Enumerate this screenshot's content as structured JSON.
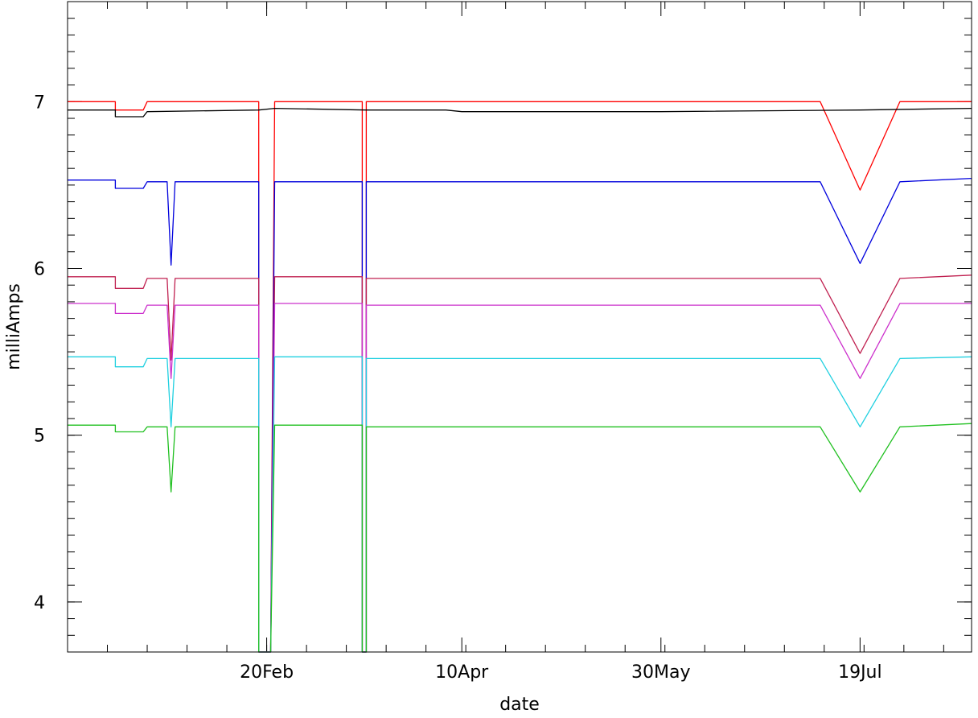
{
  "chart_data": {
    "type": "line",
    "title": "",
    "xlabel": "date",
    "ylabel": "milliAmps",
    "ylim": [
      3.7,
      7.6
    ],
    "x_start": "2007-01-01",
    "x_end": "2007-08-16",
    "x_ticks": [
      {
        "date": "2007-02-20",
        "label": "20Feb"
      },
      {
        "date": "2007-04-10",
        "label": "10Apr"
      },
      {
        "date": "2007-05-30",
        "label": "30May"
      },
      {
        "date": "2007-07-19",
        "label": "19Jul"
      }
    ],
    "y_ticks": [
      {
        "value": 4,
        "label": "4"
      },
      {
        "value": 5,
        "label": "5"
      },
      {
        "value": 6,
        "label": "6"
      },
      {
        "value": 7,
        "label": "7"
      }
    ],
    "series": [
      {
        "color": "#ff0000",
        "points": [
          [
            "2007-01-01",
            7.0
          ],
          [
            "2007-01-13",
            7.0
          ],
          [
            "2007-01-13",
            6.95
          ],
          [
            "2007-01-20",
            6.95
          ],
          [
            "2007-01-21",
            7.0
          ],
          [
            "2007-02-18",
            7.0
          ],
          [
            "2007-02-18",
            3.7
          ],
          [
            "2007-02-21",
            3.7
          ],
          [
            "2007-02-22",
            7.0
          ],
          [
            "2007-03-16",
            7.0
          ],
          [
            "2007-03-16",
            3.7
          ],
          [
            "2007-03-17",
            3.7
          ],
          [
            "2007-03-17",
            7.0
          ],
          [
            "2007-07-09",
            7.0
          ],
          [
            "2007-07-19",
            6.47
          ],
          [
            "2007-07-29",
            7.0
          ],
          [
            "2007-08-16",
            7.0
          ]
        ]
      },
      {
        "color": "#000000",
        "points": [
          [
            "2007-01-01",
            6.95
          ],
          [
            "2007-01-13",
            6.95
          ],
          [
            "2007-01-13",
            6.91
          ],
          [
            "2007-01-20",
            6.91
          ],
          [
            "2007-01-21",
            6.94
          ],
          [
            "2007-02-18",
            6.95
          ],
          [
            "2007-02-22",
            6.96
          ],
          [
            "2007-03-17",
            6.95
          ],
          [
            "2007-04-06",
            6.95
          ],
          [
            "2007-04-10",
            6.94
          ],
          [
            "2007-05-30",
            6.94
          ],
          [
            "2007-07-19",
            6.95
          ],
          [
            "2007-08-16",
            6.96
          ]
        ]
      },
      {
        "color": "#0000dd",
        "points": [
          [
            "2007-01-01",
            6.53
          ],
          [
            "2007-01-13",
            6.53
          ],
          [
            "2007-01-13",
            6.48
          ],
          [
            "2007-01-20",
            6.48
          ],
          [
            "2007-01-21",
            6.52
          ],
          [
            "2007-01-26",
            6.52
          ],
          [
            "2007-01-27",
            6.02
          ],
          [
            "2007-01-28",
            6.52
          ],
          [
            "2007-02-18",
            6.52
          ],
          [
            "2007-02-18",
            3.7
          ],
          [
            "2007-02-21",
            3.7
          ],
          [
            "2007-02-22",
            6.52
          ],
          [
            "2007-03-16",
            6.52
          ],
          [
            "2007-03-16",
            3.7
          ],
          [
            "2007-03-17",
            3.7
          ],
          [
            "2007-03-17",
            6.52
          ],
          [
            "2007-07-09",
            6.52
          ],
          [
            "2007-07-19",
            6.03
          ],
          [
            "2007-07-29",
            6.52
          ],
          [
            "2007-08-16",
            6.54
          ]
        ]
      },
      {
        "color": "#c02050",
        "points": [
          [
            "2007-01-01",
            5.95
          ],
          [
            "2007-01-13",
            5.95
          ],
          [
            "2007-01-13",
            5.88
          ],
          [
            "2007-01-20",
            5.88
          ],
          [
            "2007-01-21",
            5.94
          ],
          [
            "2007-01-26",
            5.94
          ],
          [
            "2007-01-27",
            5.45
          ],
          [
            "2007-01-28",
            5.94
          ],
          [
            "2007-02-18",
            5.94
          ],
          [
            "2007-02-18",
            3.7
          ],
          [
            "2007-02-21",
            3.7
          ],
          [
            "2007-02-22",
            5.95
          ],
          [
            "2007-03-16",
            5.95
          ],
          [
            "2007-03-16",
            3.7
          ],
          [
            "2007-03-17",
            3.7
          ],
          [
            "2007-03-17",
            5.94
          ],
          [
            "2007-07-09",
            5.94
          ],
          [
            "2007-07-19",
            5.49
          ],
          [
            "2007-07-29",
            5.94
          ],
          [
            "2007-08-16",
            5.96
          ]
        ]
      },
      {
        "color": "#cc30cc",
        "points": [
          [
            "2007-01-01",
            5.79
          ],
          [
            "2007-01-13",
            5.79
          ],
          [
            "2007-01-13",
            5.73
          ],
          [
            "2007-01-20",
            5.73
          ],
          [
            "2007-01-21",
            5.78
          ],
          [
            "2007-01-26",
            5.78
          ],
          [
            "2007-01-27",
            5.34
          ],
          [
            "2007-01-28",
            5.78
          ],
          [
            "2007-02-18",
            5.78
          ],
          [
            "2007-02-18",
            3.7
          ],
          [
            "2007-02-21",
            3.7
          ],
          [
            "2007-02-22",
            5.79
          ],
          [
            "2007-03-16",
            5.79
          ],
          [
            "2007-03-16",
            3.7
          ],
          [
            "2007-03-17",
            3.7
          ],
          [
            "2007-03-17",
            5.78
          ],
          [
            "2007-07-09",
            5.78
          ],
          [
            "2007-07-19",
            5.34
          ],
          [
            "2007-07-29",
            5.79
          ],
          [
            "2007-08-16",
            5.79
          ]
        ]
      },
      {
        "color": "#20d0e0",
        "points": [
          [
            "2007-01-01",
            5.47
          ],
          [
            "2007-01-13",
            5.47
          ],
          [
            "2007-01-13",
            5.41
          ],
          [
            "2007-01-20",
            5.41
          ],
          [
            "2007-01-21",
            5.46
          ],
          [
            "2007-01-26",
            5.46
          ],
          [
            "2007-01-27",
            5.05
          ],
          [
            "2007-01-28",
            5.46
          ],
          [
            "2007-02-18",
            5.46
          ],
          [
            "2007-02-18",
            3.7
          ],
          [
            "2007-02-21",
            3.7
          ],
          [
            "2007-02-22",
            5.47
          ],
          [
            "2007-03-16",
            5.47
          ],
          [
            "2007-03-16",
            3.7
          ],
          [
            "2007-03-17",
            3.7
          ],
          [
            "2007-03-17",
            5.46
          ],
          [
            "2007-07-09",
            5.46
          ],
          [
            "2007-07-19",
            5.05
          ],
          [
            "2007-07-29",
            5.46
          ],
          [
            "2007-08-16",
            5.47
          ]
        ]
      },
      {
        "color": "#20c020",
        "points": [
          [
            "2007-01-01",
            5.06
          ],
          [
            "2007-01-13",
            5.06
          ],
          [
            "2007-01-13",
            5.02
          ],
          [
            "2007-01-20",
            5.02
          ],
          [
            "2007-01-21",
            5.05
          ],
          [
            "2007-01-26",
            5.05
          ],
          [
            "2007-01-27",
            4.66
          ],
          [
            "2007-01-28",
            5.05
          ],
          [
            "2007-02-18",
            5.05
          ],
          [
            "2007-02-18",
            3.7
          ],
          [
            "2007-02-21",
            3.7
          ],
          [
            "2007-02-22",
            5.06
          ],
          [
            "2007-03-16",
            5.06
          ],
          [
            "2007-03-16",
            3.7
          ],
          [
            "2007-03-17",
            3.7
          ],
          [
            "2007-03-17",
            5.05
          ],
          [
            "2007-07-09",
            5.05
          ],
          [
            "2007-07-19",
            4.66
          ],
          [
            "2007-07-29",
            5.05
          ],
          [
            "2007-08-16",
            5.07
          ]
        ]
      }
    ]
  }
}
